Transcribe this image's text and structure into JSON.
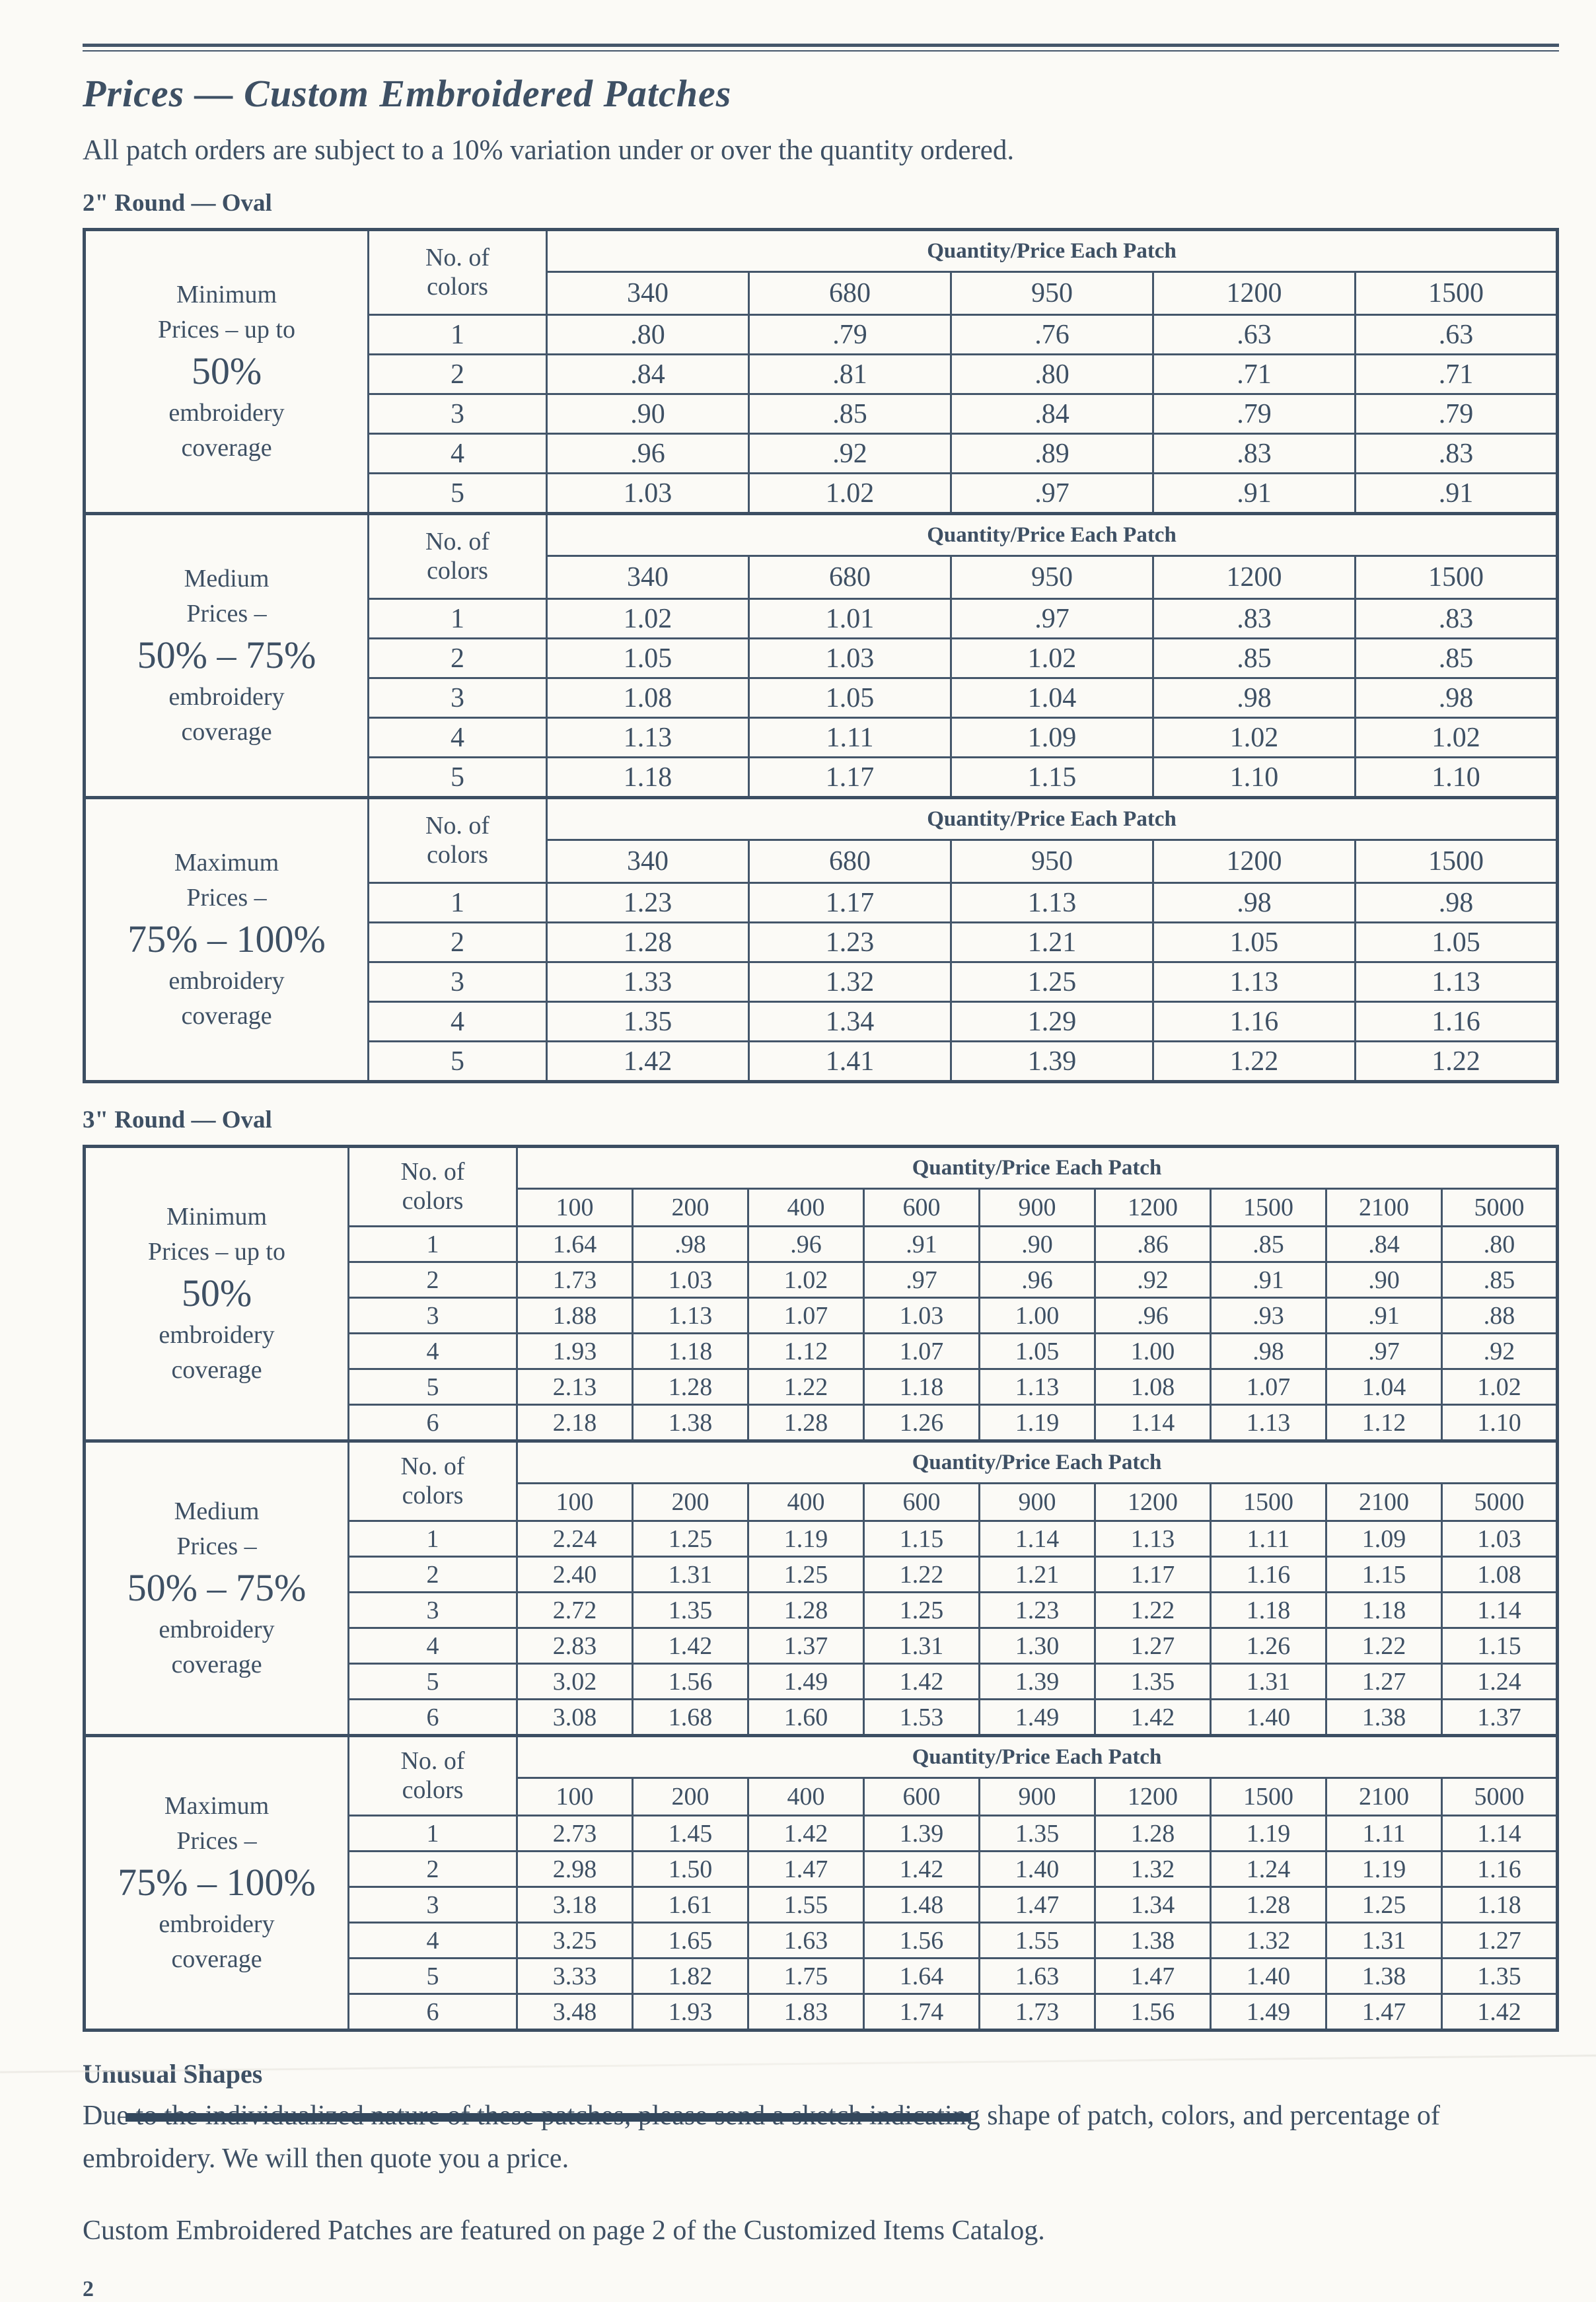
{
  "page": {
    "title": "Prices  — Custom Embroidered Patches",
    "subtitle": "All patch orders are subject to a 10% variation under or over the quantity ordered.",
    "page_number": "2",
    "colors": {
      "ink": "#3e5064",
      "paper": "#fbfaf6",
      "border": "#44566a"
    },
    "footer": {
      "unusual_shapes_heading": "Unusual Shapes",
      "unusual_shapes_text": "Due to the individualized nature of these patches, please send a sketch indicating shape of patch, colors, and percentage of embroidery. We will then quote you a price.",
      "catalog_note": "Custom Embroidered Patches are featured on page 2 of the Customized Items Catalog."
    }
  },
  "sections": [
    {
      "heading": "2\" Round — Oval",
      "tables": [
        {
          "label_lines": [
            "Minimum",
            "Prices – up to",
            "50%",
            "embroidery",
            "coverage"
          ],
          "big_index": 2,
          "col_header_lines": [
            "No. of",
            "colors"
          ],
          "span_header": "Quantity/Price Each Patch",
          "quantities": [
            "340",
            "680",
            "950",
            "1200",
            "1500"
          ],
          "rows": [
            {
              "colors": "1",
              "prices": [
                ".80",
                ".79",
                ".76",
                ".63",
                ".63"
              ]
            },
            {
              "colors": "2",
              "prices": [
                ".84",
                ".81",
                ".80",
                ".71",
                ".71"
              ]
            },
            {
              "colors": "3",
              "prices": [
                ".90",
                ".85",
                ".84",
                ".79",
                ".79"
              ]
            },
            {
              "colors": "4",
              "prices": [
                ".96",
                ".92",
                ".89",
                ".83",
                ".83"
              ]
            },
            {
              "colors": "5",
              "prices": [
                "1.03",
                "1.02",
                ".97",
                ".91",
                ".91"
              ]
            }
          ]
        },
        {
          "label_lines": [
            "Medium",
            "Prices –",
            "50% – 75%",
            "embroidery",
            "coverage"
          ],
          "big_index": 2,
          "col_header_lines": [
            "No. of",
            "colors"
          ],
          "span_header": "Quantity/Price Each Patch",
          "quantities": [
            "340",
            "680",
            "950",
            "1200",
            "1500"
          ],
          "rows": [
            {
              "colors": "1",
              "prices": [
                "1.02",
                "1.01",
                ".97",
                ".83",
                ".83"
              ]
            },
            {
              "colors": "2",
              "prices": [
                "1.05",
                "1.03",
                "1.02",
                ".85",
                ".85"
              ]
            },
            {
              "colors": "3",
              "prices": [
                "1.08",
                "1.05",
                "1.04",
                ".98",
                ".98"
              ]
            },
            {
              "colors": "4",
              "prices": [
                "1.13",
                "1.11",
                "1.09",
                "1.02",
                "1.02"
              ]
            },
            {
              "colors": "5",
              "prices": [
                "1.18",
                "1.17",
                "1.15",
                "1.10",
                "1.10"
              ]
            }
          ]
        },
        {
          "label_lines": [
            "Maximum",
            "Prices –",
            "75% – 100%",
            "embroidery",
            "coverage"
          ],
          "big_index": 2,
          "col_header_lines": [
            "No. of",
            "colors"
          ],
          "span_header": "Quantity/Price Each Patch",
          "quantities": [
            "340",
            "680",
            "950",
            "1200",
            "1500"
          ],
          "rows": [
            {
              "colors": "1",
              "prices": [
                "1.23",
                "1.17",
                "1.13",
                ".98",
                ".98"
              ]
            },
            {
              "colors": "2",
              "prices": [
                "1.28",
                "1.23",
                "1.21",
                "1.05",
                "1.05"
              ]
            },
            {
              "colors": "3",
              "prices": [
                "1.33",
                "1.32",
                "1.25",
                "1.13",
                "1.13"
              ]
            },
            {
              "colors": "4",
              "prices": [
                "1.35",
                "1.34",
                "1.29",
                "1.16",
                "1.16"
              ]
            },
            {
              "colors": "5",
              "prices": [
                "1.42",
                "1.41",
                "1.39",
                "1.22",
                "1.22"
              ]
            }
          ]
        }
      ]
    },
    {
      "heading": "3\" Round — Oval",
      "tables": [
        {
          "label_lines": [
            "Minimum",
            "Prices – up to",
            "50%",
            "embroidery",
            "coverage"
          ],
          "big_index": 2,
          "col_header_lines": [
            "No. of",
            "colors"
          ],
          "span_header": "Quantity/Price Each Patch",
          "quantities": [
            "100",
            "200",
            "400",
            "600",
            "900",
            "1200",
            "1500",
            "2100",
            "5000"
          ],
          "rows": [
            {
              "colors": "1",
              "prices": [
                "1.64",
                ".98",
                ".96",
                ".91",
                ".90",
                ".86",
                ".85",
                ".84",
                ".80"
              ]
            },
            {
              "colors": "2",
              "prices": [
                "1.73",
                "1.03",
                "1.02",
                ".97",
                ".96",
                ".92",
                ".91",
                ".90",
                ".85"
              ]
            },
            {
              "colors": "3",
              "prices": [
                "1.88",
                "1.13",
                "1.07",
                "1.03",
                "1.00",
                ".96",
                ".93",
                ".91",
                ".88"
              ]
            },
            {
              "colors": "4",
              "prices": [
                "1.93",
                "1.18",
                "1.12",
                "1.07",
                "1.05",
                "1.00",
                ".98",
                ".97",
                ".92"
              ]
            },
            {
              "colors": "5",
              "prices": [
                "2.13",
                "1.28",
                "1.22",
                "1.18",
                "1.13",
                "1.08",
                "1.07",
                "1.04",
                "1.02"
              ]
            },
            {
              "colors": "6",
              "prices": [
                "2.18",
                "1.38",
                "1.28",
                "1.26",
                "1.19",
                "1.14",
                "1.13",
                "1.12",
                "1.10"
              ]
            }
          ]
        },
        {
          "label_lines": [
            "Medium",
            "Prices –",
            "50% – 75%",
            "embroidery",
            "coverage"
          ],
          "big_index": 2,
          "col_header_lines": [
            "No. of",
            "colors"
          ],
          "span_header": "Quantity/Price Each Patch",
          "quantities": [
            "100",
            "200",
            "400",
            "600",
            "900",
            "1200",
            "1500",
            "2100",
            "5000"
          ],
          "rows": [
            {
              "colors": "1",
              "prices": [
                "2.24",
                "1.25",
                "1.19",
                "1.15",
                "1.14",
                "1.13",
                "1.11",
                "1.09",
                "1.03"
              ]
            },
            {
              "colors": "2",
              "prices": [
                "2.40",
                "1.31",
                "1.25",
                "1.22",
                "1.21",
                "1.17",
                "1.16",
                "1.15",
                "1.08"
              ]
            },
            {
              "colors": "3",
              "prices": [
                "2.72",
                "1.35",
                "1.28",
                "1.25",
                "1.23",
                "1.22",
                "1.18",
                "1.18",
                "1.14"
              ]
            },
            {
              "colors": "4",
              "prices": [
                "2.83",
                "1.42",
                "1.37",
                "1.31",
                "1.30",
                "1.27",
                "1.26",
                "1.22",
                "1.15"
              ]
            },
            {
              "colors": "5",
              "prices": [
                "3.02",
                "1.56",
                "1.49",
                "1.42",
                "1.39",
                "1.35",
                "1.31",
                "1.27",
                "1.24"
              ]
            },
            {
              "colors": "6",
              "prices": [
                "3.08",
                "1.68",
                "1.60",
                "1.53",
                "1.49",
                "1.42",
                "1.40",
                "1.38",
                "1.37"
              ]
            }
          ]
        },
        {
          "label_lines": [
            "Maximum",
            "Prices –",
            "75% – 100%",
            "embroidery",
            "coverage"
          ],
          "big_index": 2,
          "col_header_lines": [
            "No. of",
            "colors"
          ],
          "span_header": "Quantity/Price Each Patch",
          "quantities": [
            "100",
            "200",
            "400",
            "600",
            "900",
            "1200",
            "1500",
            "2100",
            "5000"
          ],
          "rows": [
            {
              "colors": "1",
              "prices": [
                "2.73",
                "1.45",
                "1.42",
                "1.39",
                "1.35",
                "1.28",
                "1.19",
                "1.11",
                "1.14"
              ]
            },
            {
              "colors": "2",
              "prices": [
                "2.98",
                "1.50",
                "1.47",
                "1.42",
                "1.40",
                "1.32",
                "1.24",
                "1.19",
                "1.16"
              ]
            },
            {
              "colors": "3",
              "prices": [
                "3.18",
                "1.61",
                "1.55",
                "1.48",
                "1.47",
                "1.34",
                "1.28",
                "1.25",
                "1.18"
              ]
            },
            {
              "colors": "4",
              "prices": [
                "3.25",
                "1.65",
                "1.63",
                "1.56",
                "1.55",
                "1.38",
                "1.32",
                "1.31",
                "1.27"
              ]
            },
            {
              "colors": "5",
              "prices": [
                "3.33",
                "1.82",
                "1.75",
                "1.64",
                "1.63",
                "1.47",
                "1.40",
                "1.38",
                "1.35"
              ]
            },
            {
              "colors": "6",
              "prices": [
                "3.48",
                "1.93",
                "1.83",
                "1.74",
                "1.73",
                "1.56",
                "1.49",
                "1.47",
                "1.42"
              ]
            }
          ]
        }
      ]
    }
  ]
}
